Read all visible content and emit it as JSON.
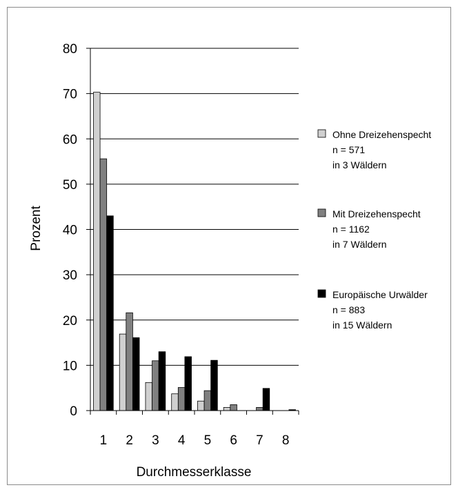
{
  "chart_data": {
    "type": "bar",
    "title": "",
    "xlabel": "Durchmesserklasse",
    "ylabel": "Prozent",
    "ylim": [
      0,
      80
    ],
    "yticks": [
      0,
      10,
      20,
      30,
      40,
      50,
      60,
      70,
      80
    ],
    "categories": [
      "1",
      "2",
      "3",
      "4",
      "5",
      "6",
      "7",
      "8"
    ],
    "grid": true,
    "legend_position": "right",
    "series": [
      {
        "name": "Ohne Dreizehenspecht",
        "legend_lines": [
          "Ohne Dreizehenspecht",
          "n = 571",
          "in 3 Wäldern"
        ],
        "color": "#d0d0d0",
        "values": [
          70.3,
          16.9,
          6.2,
          3.7,
          2.1,
          0.7,
          0.0,
          0.0
        ]
      },
      {
        "name": "Mit Dreizehenspecht",
        "legend_lines": [
          "Mit Dreizehenspecht",
          "n = 1162",
          "in 7 Wäldern"
        ],
        "color": "#808080",
        "values": [
          55.6,
          21.6,
          11.0,
          5.1,
          4.4,
          1.3,
          0.7,
          0.0
        ]
      },
      {
        "name": "Europäische Urwälder",
        "legend_lines": [
          "Europäische Urwälder",
          "n = 883",
          "in 15 Wäldern"
        ],
        "color": "#000000",
        "values": [
          43.0,
          16.1,
          13.0,
          11.9,
          11.1,
          0.0,
          4.9,
          0.2
        ]
      }
    ]
  }
}
